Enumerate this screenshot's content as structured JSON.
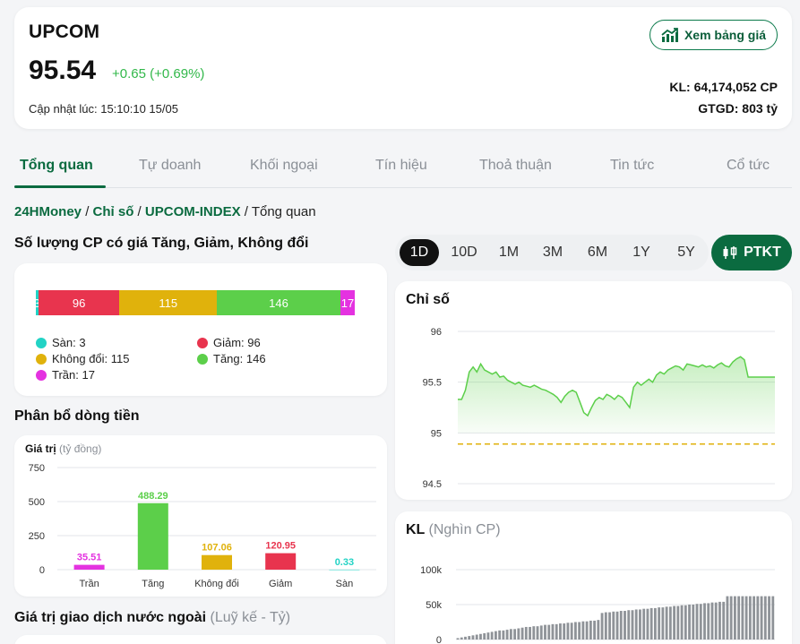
{
  "header": {
    "index_name": "UPCOM",
    "price": "95.54",
    "change": "+0.65 (+0.69%)",
    "updated": "Cập nhật lúc: 15:10:10 15/05",
    "price_board_button": "Xem bảng giá",
    "volume": "KL: 64,174,052 CP",
    "value": "GTGD: 803 tỷ"
  },
  "tabs": [
    "Tổng quan",
    "Tự doanh",
    "Khối ngoại",
    "Tín hiệu",
    "Thoả thuận",
    "Tin tức",
    "Cổ tức"
  ],
  "breadcrumb": {
    "home": "24HMoney",
    "category": "Chỉ số",
    "index": "UPCOM-INDEX",
    "current": "Tổng quan"
  },
  "stock_count": {
    "title": "Số lượng CP có giá Tăng, Giảm, Không đổi",
    "segments": [
      {
        "label": "Sàn",
        "count": 3,
        "color": "#22d3c5"
      },
      {
        "label": "Giảm",
        "count": 96,
        "color": "#e8344e"
      },
      {
        "label": "Không đổi",
        "count": 115,
        "color": "#e0b20c"
      },
      {
        "label": "Tăng",
        "count": 146,
        "color": "#5ccf4a"
      },
      {
        "label": "Trần",
        "count": 17,
        "color": "#e432e0"
      }
    ],
    "legend": {
      "san": "Sàn: 3",
      "giam": "Giảm: 96",
      "khong_doi": "Không đổi: 115",
      "tang": "Tăng: 146",
      "tran": "Trần: 17"
    }
  },
  "money_flow": {
    "title": "Phân bổ dòng tiền",
    "axis_title": "Giá trị",
    "axis_unit": "(tỷ đồng)"
  },
  "foreign_title": {
    "main": "Giá trị giao dịch nước ngoài",
    "sub": "(Luỹ kế - Tỷ)"
  },
  "ranges": [
    "1D",
    "10D",
    "1M",
    "3M",
    "6M",
    "1Y",
    "5Y"
  ],
  "active_range": "1D",
  "ptkt_label": "PTKT",
  "index_chart_title": "Chỉ số",
  "volume_chart": {
    "title": "KL",
    "unit": "(Nghìn CP)"
  },
  "chart_data": [
    {
      "type": "bar",
      "title": "Phân bổ dòng tiền",
      "categories": [
        "Trần",
        "Tăng",
        "Không đổi",
        "Giảm",
        "Sàn"
      ],
      "values": [
        35.51,
        488.29,
        107.06,
        120.95,
        0.33
      ],
      "colors": [
        "#e432e0",
        "#5ccf4a",
        "#e0b20c",
        "#e8344e",
        "#22d3c5"
      ],
      "ylim": [
        0,
        750
      ],
      "yticks": [
        0,
        250,
        500,
        750
      ],
      "grid": true
    },
    {
      "type": "area",
      "title": "Chỉ số",
      "ylim": [
        94.5,
        96
      ],
      "yticks": [
        "94.5",
        "95",
        "95.5",
        "96"
      ],
      "reference": 94.89,
      "values": [
        95.33,
        95.33,
        95.42,
        95.6,
        95.65,
        95.6,
        95.68,
        95.62,
        95.6,
        95.58,
        95.6,
        95.55,
        95.56,
        95.52,
        95.5,
        95.48,
        95.5,
        95.47,
        95.46,
        95.45,
        95.47,
        95.45,
        95.43,
        95.42,
        95.4,
        95.38,
        95.35,
        95.3,
        95.36,
        95.4,
        95.42,
        95.4,
        95.3,
        95.2,
        95.17,
        95.25,
        95.32,
        95.35,
        95.33,
        95.38,
        95.36,
        95.33,
        95.37,
        95.35,
        95.3,
        95.25,
        95.45,
        95.5,
        95.47,
        95.5,
        95.53,
        95.5,
        95.57,
        95.6,
        95.58,
        95.62,
        95.64,
        95.66,
        95.65,
        95.62,
        95.68,
        95.67,
        95.66,
        95.65,
        95.67,
        95.65,
        95.66,
        95.64,
        95.67,
        95.69,
        95.66,
        95.65,
        95.7,
        95.73,
        95.75,
        95.72,
        95.55,
        95.55,
        95.55,
        95.55,
        95.55,
        95.55,
        95.55,
        95.55
      ]
    },
    {
      "type": "bar",
      "title": "KL",
      "ylim": [
        0,
        100
      ],
      "yticks": [
        "0",
        "50k",
        "100k"
      ],
      "values": [
        2,
        3,
        4,
        5,
        6,
        7,
        8,
        9,
        10,
        11,
        12,
        13,
        13,
        14,
        15,
        15,
        16,
        17,
        18,
        18,
        19,
        19,
        20,
        21,
        21,
        22,
        22,
        23,
        23,
        24,
        24,
        25,
        25,
        26,
        26,
        27,
        27,
        28,
        38,
        39,
        39,
        40,
        40,
        41,
        41,
        42,
        42,
        43,
        43,
        44,
        44,
        45,
        45,
        46,
        46,
        47,
        47,
        48,
        48,
        49,
        49,
        50,
        50,
        51,
        51,
        52,
        52,
        53,
        53,
        54,
        54,
        62,
        62,
        62,
        62,
        62,
        62,
        62,
        62,
        62,
        62,
        62,
        62,
        62
      ]
    }
  ]
}
